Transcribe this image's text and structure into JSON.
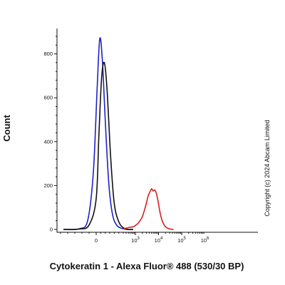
{
  "chart_data": {
    "type": "line",
    "xlabel": "Cytokeratin 1 - Alexa Fluor® 488 (530/30 BP)",
    "ylabel": "Count",
    "annotation": "Copyright (c) 2024  Abcam Limited",
    "x_scale": "biexponential",
    "xlim": [
      -300,
      1000000
    ],
    "ylim": [
      0,
      900
    ],
    "x_ticks": [
      {
        "value": 0,
        "base": "0",
        "exp": ""
      },
      {
        "value": 1000,
        "base": "10",
        "exp": "3"
      },
      {
        "value": 10000,
        "base": "10",
        "exp": "4"
      },
      {
        "value": 100000,
        "base": "10",
        "exp": "5"
      },
      {
        "value": 1000000,
        "base": "10",
        "exp": "6"
      }
    ],
    "y_ticks": [
      0,
      200,
      400,
      600,
      800
    ],
    "grid": false,
    "series": [
      {
        "color": "#1f1fd0",
        "x": [
          -230,
          -120,
          -60,
          -20,
          10,
          40,
          70,
          100,
          140,
          180,
          230,
          300,
          500,
          800
        ],
        "y": [
          0,
          3,
          40,
          260,
          640,
          870,
          760,
          500,
          210,
          70,
          18,
          3,
          0,
          0
        ]
      },
      {
        "color": "#111111",
        "x": [
          -230,
          -120,
          -50,
          0,
          30,
          60,
          90,
          120,
          160,
          200,
          250,
          320,
          500,
          800
        ],
        "y": [
          0,
          2,
          20,
          140,
          430,
          690,
          760,
          640,
          330,
          120,
          35,
          6,
          0,
          0
        ]
      },
      {
        "color": "#d62020",
        "x": [
          300,
          500,
          800,
          1000,
          1300,
          1600,
          2000,
          2500,
          3000,
          3500,
          4200,
          5000,
          5800,
          6800,
          8000,
          9500,
          11000,
          13000,
          16000,
          20000,
          25000,
          32000,
          45000
        ],
        "y": [
          2,
          8,
          12,
          18,
          28,
          40,
          58,
          90,
          120,
          150,
          170,
          185,
          175,
          180,
          165,
          130,
          90,
          55,
          28,
          12,
          5,
          2,
          0
        ]
      }
    ]
  }
}
